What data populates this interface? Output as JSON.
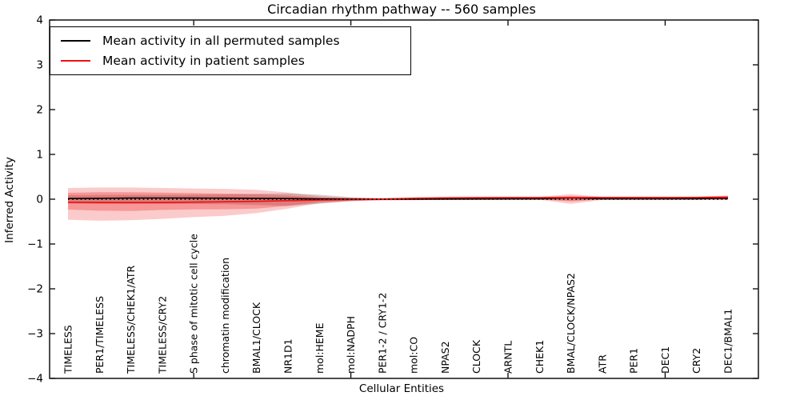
{
  "chart_data": {
    "type": "line",
    "title": "Circadian rhythm pathway -- 560 samples",
    "xlabel": "Cellular Entities",
    "ylabel": "Inferred Activity",
    "ylim": [
      -4,
      4
    ],
    "grid": false,
    "legend_position": "upper left",
    "background_color": "#ffffff",
    "axis_color": "#000000",
    "zero_line": {
      "style": "dotted",
      "color": "#000000",
      "y": 0
    },
    "yticks": [
      {
        "v": -4,
        "label": "−4"
      },
      {
        "v": -3,
        "label": "−3"
      },
      {
        "v": -2,
        "label": "−2"
      },
      {
        "v": -1,
        "label": "−1"
      },
      {
        "v": 0,
        "label": "0"
      },
      {
        "v": 1,
        "label": "1"
      },
      {
        "v": 2,
        "label": "2"
      },
      {
        "v": 3,
        "label": "3"
      },
      {
        "v": 4,
        "label": "4"
      }
    ],
    "xticks_major_positions": [
      5,
      10,
      15,
      20
    ],
    "categories": [
      "TIMELESS",
      "PER1/TIMELESS",
      "TIMELESS/CHEK1/ATR",
      "TIMELESS/CRY2",
      "S phase of mitotic cell cycle",
      "chromatin modification",
      "BMAL1/CLOCK",
      "NR1D1",
      "mol:HEME",
      "mol:NADPH",
      "PER1-2 / CRY1-2",
      "mol:CO",
      "NPAS2",
      "CLOCK",
      "ARNTL",
      "CHEK1",
      "BMAL/CLOCK/NPAS2",
      "ATR",
      "PER1",
      "DEC1",
      "CRY2",
      "DEC1/BMAL1"
    ],
    "series": [
      {
        "name": "Mean activity in all permuted samples",
        "color": "#000000",
        "values": [
          0.015,
          0.02,
          0.025,
          0.027,
          0.025,
          0.023,
          0.02,
          0.014,
          0.005,
          0.002,
          0.0,
          0.002,
          0.004,
          0.005,
          0.007,
          0.009,
          0.03,
          0.009,
          0.009,
          0.009,
          0.011,
          0.022
        ],
        "band": {
          "fill": "#999999",
          "opacity": 0.45,
          "upper": [
            0.09,
            0.095,
            0.098,
            0.098,
            0.1,
            0.107,
            0.121,
            0.13,
            0.1,
            0.045,
            0.015,
            0.016,
            0.018,
            0.02,
            0.021,
            0.02,
            0.05,
            0.02,
            0.021,
            0.021,
            0.027,
            0.045
          ],
          "lower": [
            -0.098,
            -0.104,
            -0.107,
            -0.105,
            -0.105,
            -0.113,
            -0.129,
            -0.148,
            -0.1,
            -0.045,
            -0.016,
            -0.016,
            -0.014,
            -0.013,
            -0.013,
            -0.013,
            -0.028,
            -0.011,
            -0.011,
            -0.011,
            -0.005,
            0.0
          ]
        }
      },
      {
        "name": "Mean activity in patient samples",
        "color": "#ee1111",
        "values": [
          -0.068,
          -0.073,
          -0.075,
          -0.073,
          -0.066,
          -0.057,
          -0.046,
          -0.032,
          -0.018,
          -0.009,
          0.002,
          0.02,
          0.03,
          0.034,
          0.036,
          0.036,
          0.035,
          0.037,
          0.037,
          0.037,
          0.039,
          0.045
        ],
        "band_outer": {
          "fill": "#ee1111",
          "opacity": 0.22,
          "upper": [
            0.25,
            0.26,
            0.26,
            0.25,
            0.24,
            0.23,
            0.21,
            0.15,
            0.065,
            0.035,
            0.025,
            0.037,
            0.048,
            0.05,
            0.054,
            0.052,
            0.115,
            0.052,
            0.05,
            0.052,
            0.055,
            0.085
          ],
          "lower": [
            -0.46,
            -0.48,
            -0.47,
            -0.44,
            -0.4,
            -0.37,
            -0.31,
            -0.21,
            -0.09,
            -0.04,
            -0.028,
            -0.021,
            -0.014,
            -0.012,
            -0.01,
            -0.011,
            -0.105,
            -0.013,
            -0.014,
            -0.014,
            -0.016,
            -0.02
          ]
        },
        "band_inner": {
          "fill": "#ee1111",
          "opacity": 0.28,
          "upper": [
            0.143,
            0.155,
            0.157,
            0.148,
            0.136,
            0.125,
            0.109,
            0.08,
            0.04,
            0.022,
            0.014,
            0.029,
            0.039,
            0.041,
            0.045,
            0.043,
            0.07,
            0.043,
            0.043,
            0.045,
            0.048,
            0.065
          ],
          "lower": [
            -0.232,
            -0.257,
            -0.264,
            -0.239,
            -0.229,
            -0.225,
            -0.21,
            -0.15,
            -0.065,
            -0.03,
            -0.018,
            -0.011,
            -0.005,
            -0.004,
            -0.002,
            -0.002,
            -0.05,
            -0.007,
            -0.004,
            -0.004,
            -0.004,
            -0.01
          ]
        }
      }
    ]
  }
}
